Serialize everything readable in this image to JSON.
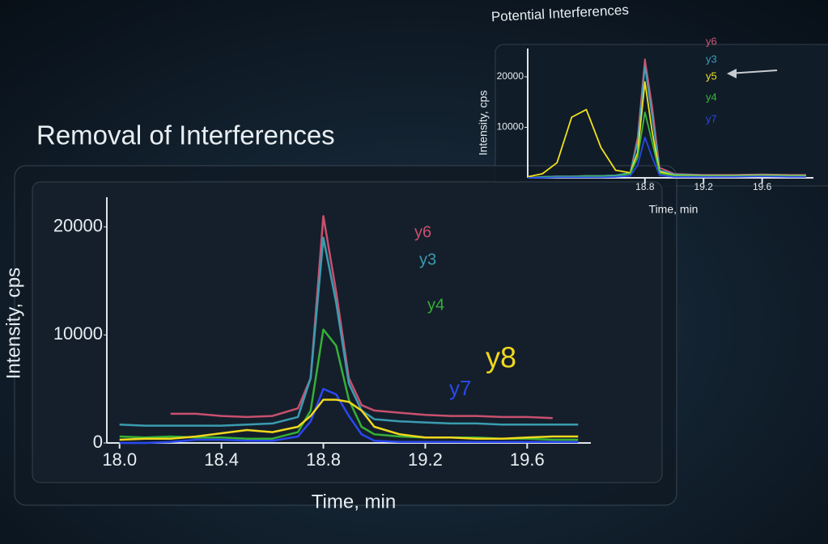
{
  "heading": "Removal of Interferences",
  "chart_data": [
    {
      "type": "line",
      "xlabel": "Time, min",
      "ylabel": "Intensity, cps",
      "x": [
        18.0,
        18.1,
        18.2,
        18.3,
        18.4,
        18.5,
        18.6,
        18.7,
        18.75,
        18.8,
        18.85,
        18.9,
        18.95,
        19.0,
        19.1,
        19.2,
        19.3,
        19.4,
        19.5,
        19.6,
        19.7,
        19.8
      ],
      "xlim": [
        17.95,
        19.85
      ],
      "xticks": [
        {
          "value": 18,
          "label": "18.0"
        },
        18.4,
        18.8,
        19.2,
        19.6
      ],
      "ylim": [
        0,
        22000
      ],
      "yticks": [
        0,
        10000,
        20000
      ],
      "series": [
        {
          "name": "y6",
          "color": "#c9506e",
          "values": [
            null,
            null,
            2700,
            2700,
            2500,
            2400,
            2500,
            3200,
            6000,
            21000,
            14000,
            6000,
            3500,
            3000,
            2800,
            2600,
            2500,
            2500,
            2400,
            2400,
            2300,
            null
          ]
        },
        {
          "name": "y3",
          "color": "#3a9cb0",
          "values": [
            1700,
            1600,
            1600,
            1600,
            1600,
            1700,
            1800,
            2400,
            6000,
            19000,
            13000,
            5500,
            3000,
            2200,
            2000,
            1900,
            1800,
            1800,
            1700,
            1700,
            1700,
            1700
          ]
        },
        {
          "name": "y4",
          "color": "#36b036",
          "values": [
            600,
            500,
            600,
            500,
            500,
            400,
            400,
            1000,
            3000,
            10500,
            9000,
            4000,
            1500,
            800,
            600,
            500,
            500,
            500,
            400,
            400,
            300,
            300
          ]
        },
        {
          "name": "y7",
          "color": "#2a48f0",
          "values": [
            0,
            0,
            100,
            300,
            300,
            200,
            200,
            600,
            2000,
            5000,
            4500,
            2500,
            800,
            200,
            100,
            100,
            100,
            100,
            100,
            100,
            100,
            100
          ]
        },
        {
          "name": "y8",
          "color": "#f0d81e",
          "values": [
            300,
            400,
            400,
            600,
            900,
            1200,
            1000,
            1500,
            2500,
            4000,
            4000,
            3800,
            3000,
            1500,
            800,
            500,
            500,
            400,
            400,
            500,
            600,
            600
          ]
        }
      ]
    },
    {
      "type": "line",
      "title": "Potential Interferences",
      "xlabel": "Time, min",
      "ylabel": "Intensity, cps",
      "x": [
        18.0,
        18.1,
        18.2,
        18.3,
        18.4,
        18.5,
        18.6,
        18.7,
        18.75,
        18.8,
        18.85,
        18.9,
        19.0,
        19.2,
        19.4,
        19.6,
        19.8,
        19.9
      ],
      "xlim": [
        18.0,
        19.95
      ],
      "xticks": [
        18.8,
        19.2,
        19.6
      ],
      "ylim": [
        0,
        24000
      ],
      "yticks": [
        10000,
        20000
      ],
      "series": [
        {
          "name": "y6",
          "color": "#d05878",
          "values": [
            0,
            200,
            300,
            300,
            400,
            400,
            500,
            1000,
            8000,
            23500,
            14000,
            2000,
            800,
            600,
            600,
            700,
            600,
            600
          ]
        },
        {
          "name": "y3",
          "color": "#3aa0b8",
          "values": [
            0,
            200,
            300,
            300,
            400,
            400,
            500,
            1000,
            7000,
            22000,
            12000,
            1500,
            700,
            500,
            500,
            600,
            500,
            500
          ]
        },
        {
          "name": "y5",
          "color": "#f0e020",
          "values": [
            200,
            800,
            3000,
            12000,
            13500,
            6000,
            1500,
            1000,
            5000,
            19000,
            9000,
            1200,
            500,
            400,
            400,
            500,
            400,
            400
          ]
        },
        {
          "name": "y4",
          "color": "#3cb83c",
          "values": [
            0,
            100,
            200,
            200,
            300,
            300,
            300,
            800,
            4000,
            13000,
            7000,
            900,
            400,
            300,
            300,
            400,
            300,
            300
          ]
        },
        {
          "name": "y7",
          "color": "#2a48e8",
          "values": [
            0,
            0,
            100,
            100,
            100,
            100,
            200,
            400,
            2500,
            8000,
            4000,
            500,
            200,
            200,
            200,
            300,
            200,
            200
          ]
        }
      ]
    }
  ]
}
